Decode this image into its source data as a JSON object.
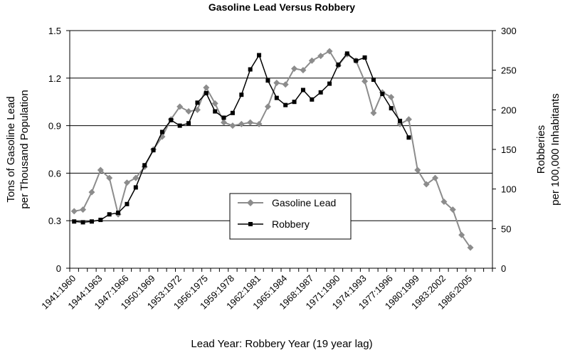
{
  "chart_data": {
    "type": "line",
    "title": "Gasoline Lead Versus Robbery",
    "xlabel": "Lead Year: Robbery Year (19 year lag)",
    "ylabel_left": [
      "Tons of Gasoline Lead",
      "per Thousand Population"
    ],
    "ylabel_right": [
      "Robberies",
      "per 100,000 Inhabitants"
    ],
    "ylim_left": [
      0,
      1.5
    ],
    "ylim_right": [
      0,
      300
    ],
    "yticks_left": [
      "0",
      "0.3",
      "0.6",
      "0.9",
      "1.2",
      "1.5"
    ],
    "yticks_right": [
      "0",
      "50",
      "100",
      "150",
      "200",
      "250",
      "300"
    ],
    "grid": true,
    "legend": "center",
    "tick_labels": [
      "1941:1960",
      "1944:1963",
      "1947:1966",
      "1950:1969",
      "1953:1972",
      "1956:1975",
      "1959:1978",
      "1962:1981",
      "1965:1984",
      "1968:1987",
      "1971:1990",
      "1974:1993",
      "1977:1996",
      "1980:1999",
      "1983:2002",
      "1986:2005"
    ],
    "lead_years": [
      1941,
      1942,
      1943,
      1944,
      1945,
      1946,
      1947,
      1948,
      1949,
      1950,
      1951,
      1952,
      1953,
      1954,
      1955,
      1956,
      1957,
      1958,
      1959,
      1960,
      1961,
      1962,
      1963,
      1964,
      1965,
      1966,
      1967,
      1968,
      1969,
      1970,
      1971,
      1972,
      1973,
      1974,
      1975,
      1976,
      1977,
      1978,
      1979,
      1980,
      1981,
      1982,
      1983,
      1984,
      1985,
      1986,
      1987,
      1988
    ],
    "series": [
      {
        "name": "Gasoline Lead",
        "color": "#8c8c8c",
        "axis": "left",
        "marker": "diamond",
        "values": [
          0.36,
          0.37,
          0.48,
          0.62,
          0.57,
          0.34,
          0.54,
          0.57,
          0.64,
          0.75,
          0.83,
          0.94,
          1.02,
          0.99,
          1.0,
          1.14,
          1.04,
          0.92,
          0.9,
          0.91,
          0.92,
          0.91,
          1.02,
          1.17,
          1.16,
          1.26,
          1.25,
          1.31,
          1.34,
          1.37,
          1.28,
          1.35,
          1.31,
          1.18,
          0.98,
          1.11,
          1.08,
          0.91,
          0.94,
          0.62,
          0.53,
          0.57,
          0.42,
          0.37,
          0.21,
          0.13
        ]
      },
      {
        "name": "Robbery",
        "color": "#000000",
        "axis": "right",
        "marker": "square",
        "values": [
          59,
          58,
          59,
          61,
          68,
          70,
          81,
          102,
          130,
          149,
          172,
          187,
          180,
          183,
          209,
          221,
          198,
          190,
          196,
          219,
          251,
          269,
          237,
          215,
          206,
          210,
          225,
          213,
          222,
          233,
          257,
          271,
          262,
          266,
          238,
          220,
          202,
          186,
          165
        ]
      }
    ]
  }
}
